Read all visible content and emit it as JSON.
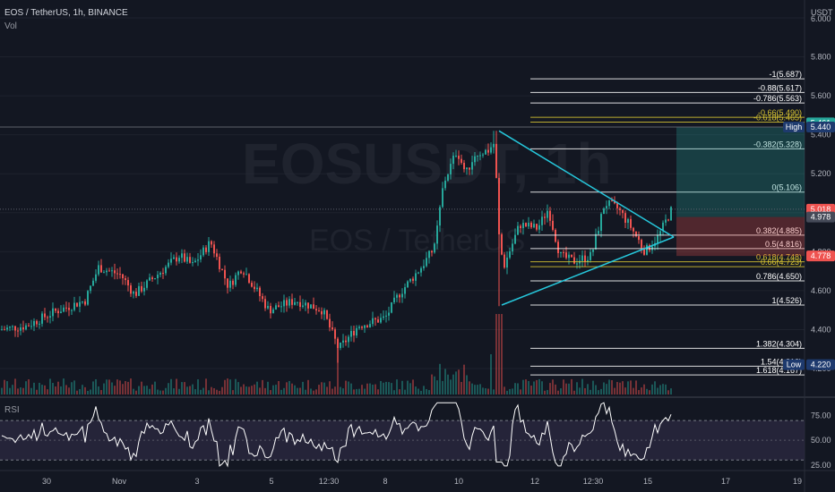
{
  "header": {
    "symbol": "EOS / TetherUS, 1h, BINANCE",
    "indicator": "Vol",
    "currency": "USDT"
  },
  "watermark": {
    "ticker": "EOSUSDT, 1h",
    "pair": "EOS / TetherUS"
  },
  "rsi_label": "RSI",
  "colors": {
    "bg": "#131722",
    "up": "#26a69a",
    "down": "#ef5350",
    "fib": "#ffffff",
    "fib_gold": "#d9c532",
    "triangle": "#26c6da",
    "rsi_line": "#ffffff",
    "rsi_band": "#2a2840"
  },
  "chart_data": [
    {
      "type": "candlestick",
      "title": "EOS / TetherUS, 1h, BINANCE",
      "ylim": [
        4.05,
        6.0
      ],
      "y_ticks": [
        "6.000",
        "5.800",
        "5.600",
        "5.400",
        "5.200",
        "5.000",
        "4.800",
        "4.600",
        "4.400",
        "4.200"
      ],
      "x_ticks": [
        "30",
        "Nov",
        "3",
        "5",
        "12:30",
        "8",
        "10",
        "12",
        "12:30",
        "15",
        "17",
        "19"
      ],
      "price_markers": [
        {
          "label": "5.461",
          "value": 5.461,
          "color": "#26a69a"
        },
        {
          "label": "High",
          "value": 5.44,
          "color": "#1e3a6e",
          "kind": "high"
        },
        {
          "label": "5.440",
          "value": 5.44,
          "color": "#1e3a6e"
        },
        {
          "label": "5.018",
          "value": 5.018,
          "color": "#ef5350"
        },
        {
          "label": "4.978",
          "value": 4.978,
          "color": "#454a58"
        },
        {
          "label": "4.778",
          "value": 4.778,
          "color": "#ef5350"
        },
        {
          "label": "Low",
          "value": 4.22,
          "color": "#1e3a6e",
          "kind": "low"
        },
        {
          "label": "4.220",
          "value": 4.22,
          "color": "#1e3a6e"
        }
      ],
      "fib_levels": [
        {
          "label": "-1(5.687)",
          "value": 5.687
        },
        {
          "label": "-0.88(5.617)",
          "value": 5.617
        },
        {
          "label": "-0.786(5.563)",
          "value": 5.563
        },
        {
          "label": "-0.66(5.490)",
          "value": 5.49,
          "gold": true
        },
        {
          "label": "-0.618(5.465)",
          "value": 5.465,
          "gold": true
        },
        {
          "label": "-0.382(5.328)",
          "value": 5.328
        },
        {
          "label": "0(5.106)",
          "value": 5.106
        },
        {
          "label": "0.382(4.885)",
          "value": 4.885
        },
        {
          "label": "0.5(4.816)",
          "value": 4.816
        },
        {
          "label": "0.618(4.748)",
          "value": 4.748,
          "gold": true
        },
        {
          "label": "0.66(4.723)",
          "value": 4.723,
          "gold": true
        },
        {
          "label": "0.786(4.650)",
          "value": 4.65
        },
        {
          "label": "1(4.526)",
          "value": 4.526
        },
        {
          "label": "1.382(4.304)",
          "value": 4.304
        },
        {
          "label": "1.54(4.212)",
          "value": 4.212
        },
        {
          "label": "1.618(4.167)",
          "value": 4.167
        }
      ],
      "position": {
        "entry": 4.978,
        "target": 5.44,
        "stop": 4.778
      },
      "triangle": {
        "top": 5.42,
        "bottom": 4.526,
        "apex": 4.875
      },
      "close": 5.018
    },
    {
      "type": "line",
      "title": "RSI",
      "ylim": [
        25,
        90
      ],
      "y_ticks": [
        "75.00",
        "50.00",
        "25.00"
      ],
      "bands": [
        30,
        70
      ]
    }
  ]
}
